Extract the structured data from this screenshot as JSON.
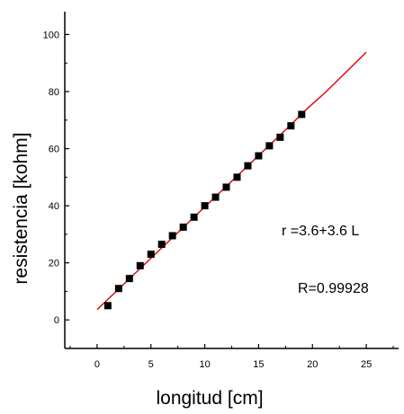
{
  "chart_data": {
    "type": "scatter",
    "title": "",
    "xlabel": "longitud [cm]",
    "ylabel": "resistencia [kohm]",
    "xlim": [
      -3,
      28
    ],
    "ylim": [
      -10,
      108
    ],
    "xticks": [
      0,
      5,
      10,
      15,
      20,
      25
    ],
    "yticks": [
      0,
      20,
      40,
      60,
      80,
      100
    ],
    "grid": false,
    "series": [
      {
        "marker": "square",
        "color": "#000000",
        "x": [
          1,
          2,
          3,
          4,
          5,
          6,
          7,
          8,
          9,
          10,
          11,
          12,
          13,
          14,
          15,
          16,
          17,
          18,
          19
        ],
        "y": [
          5,
          11,
          14.5,
          19,
          23,
          26.5,
          29.5,
          32.5,
          36,
          40,
          43,
          46.5,
          50,
          54,
          57.5,
          61,
          64,
          68,
          72
        ]
      }
    ],
    "fit": {
      "color": "#e00000",
      "x": [
        0,
        2,
        4,
        6,
        8,
        10,
        12,
        14,
        16,
        18,
        19.5,
        21,
        22.5,
        25
      ],
      "y": [
        3.6,
        10.8,
        18,
        25.2,
        32.4,
        39.6,
        46.8,
        54,
        61.2,
        68.4,
        74,
        79,
        84.5,
        93.8
      ]
    },
    "annotations": [
      "r =3.6+3.6 L",
      "R=0.99928"
    ]
  }
}
